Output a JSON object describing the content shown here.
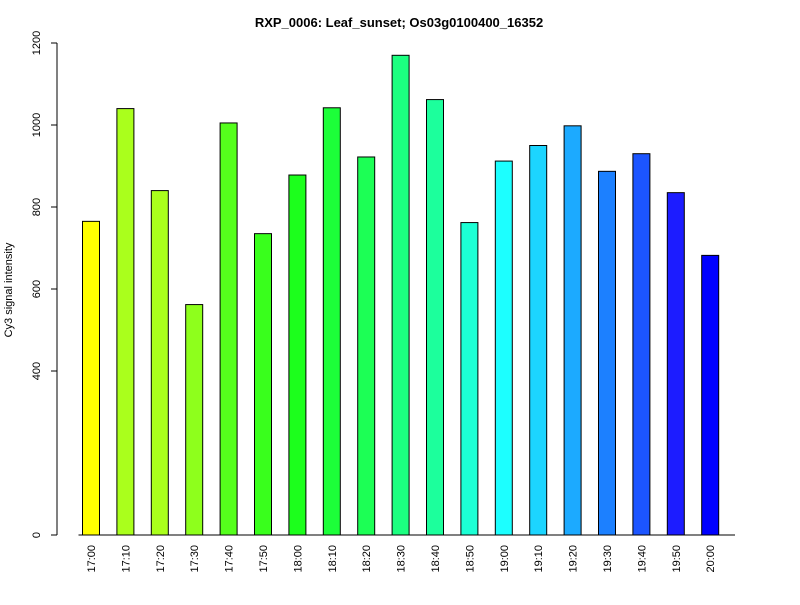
{
  "chart_data": {
    "type": "bar",
    "title": "RXP_0006: Leaf_sunset; Os03g0100400_16352",
    "ylabel": "Cy3 signal intensity",
    "xlabel": "",
    "ylim": [
      0,
      1200
    ],
    "yticks": [
      0,
      400,
      600,
      800,
      1000,
      1200
    ],
    "grid": false,
    "categories": [
      "17:00",
      "17:10",
      "17:20",
      "17:30",
      "17:40",
      "17:50",
      "18:00",
      "18:10",
      "18:20",
      "18:30",
      "18:40",
      "18:50",
      "19:00",
      "19:10",
      "19:20",
      "19:30",
      "19:40",
      "19:50",
      "20:00"
    ],
    "values": [
      765,
      1040,
      840,
      562,
      1005,
      735,
      878,
      1042,
      922,
      1170,
      1062,
      762,
      912,
      950,
      998,
      887,
      930,
      835,
      682
    ],
    "colors": [
      "#ffff00",
      "#aaff1c",
      "#aaff1c",
      "#8eff1c",
      "#55ff1c",
      "#39ff1c",
      "#1cff1c",
      "#1cff39",
      "#1cff55",
      "#1cff80",
      "#1cff9c",
      "#1cffd5",
      "#1cffff",
      "#1cd5ff",
      "#1caaff",
      "#1c80ff",
      "#1c55ff",
      "#1c1cff",
      "#0000ff"
    ]
  }
}
